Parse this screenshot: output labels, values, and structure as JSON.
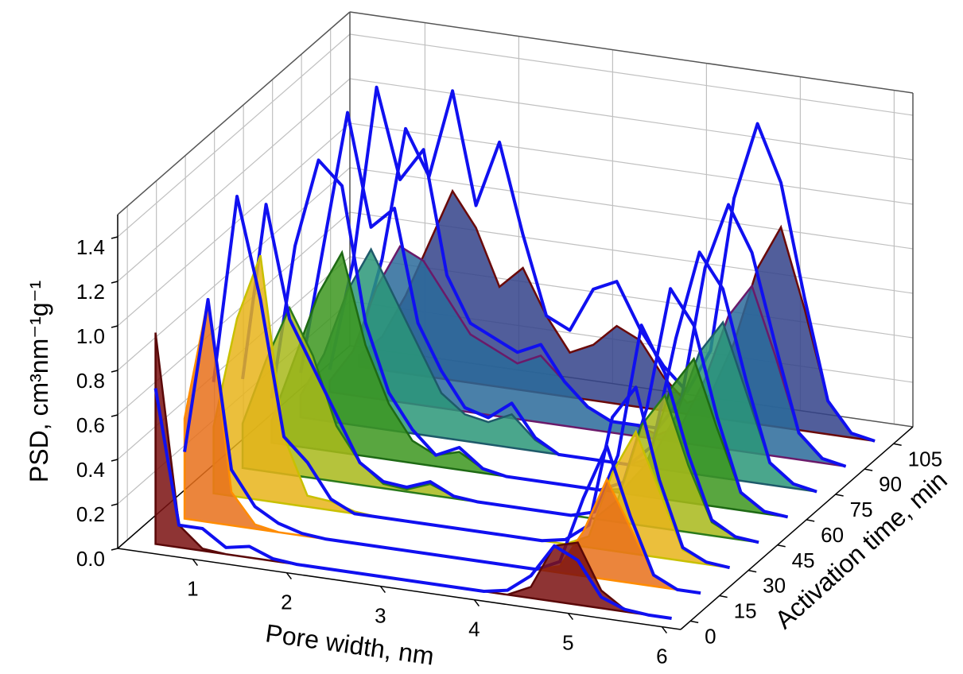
{
  "chart_data": {
    "type": "waterfall3d",
    "x_label": "Pore width, nm",
    "y_label": "PSD, cm³nm⁻¹g⁻¹",
    "z_label": "Activation time, min",
    "xlim": [
      0.2,
      6.2
    ],
    "xticks": [
      1,
      2,
      3,
      4,
      5,
      6
    ],
    "ylim": [
      0,
      1.5
    ],
    "yticks": [
      {
        "value": 0,
        "label": "0.0"
      },
      {
        "value": 0.2,
        "label": "0.2"
      },
      {
        "value": 0.4,
        "label": "0.4"
      },
      {
        "value": 0.6,
        "label": "0.6"
      },
      {
        "value": 0.8,
        "label": "0.8"
      },
      {
        "value": 1.0,
        "label": "1.0"
      },
      {
        "value": 1.2,
        "label": "1.2"
      },
      {
        "value": 1.4,
        "label": "1.4"
      }
    ],
    "zlim": [
      -5,
      115
    ],
    "zticks": [
      0,
      15,
      30,
      45,
      60,
      75,
      90,
      105
    ],
    "grid": true,
    "line_color": "#1010f0",
    "x": [
      0.5,
      0.75,
      1.0,
      1.25,
      1.5,
      1.75,
      2.0,
      2.25,
      2.5,
      2.75,
      3.0,
      3.25,
      3.5,
      3.75,
      4.0,
      4.25,
      4.5,
      4.75,
      5.0,
      5.25,
      5.5,
      5.75,
      6.0
    ],
    "series": [
      {
        "z": 0,
        "color": "#7a1010",
        "edge": "#5a0808",
        "values": [
          0.95,
          0.1,
          0.01,
          0,
          0,
          0,
          0,
          0,
          0,
          0,
          0,
          0,
          0,
          0,
          0,
          0,
          0.05,
          0.25,
          0.28,
          0.08,
          0.01,
          0,
          0
        ],
        "line_values": [
          0.7,
          0.1,
          0.1,
          0.03,
          0.05,
          0.01,
          0,
          0,
          0,
          0,
          0,
          0,
          0,
          0,
          0,
          0.02,
          0.1,
          0.25,
          0.2,
          0.05,
          0.01,
          0,
          0
        ]
      },
      {
        "z": 15,
        "color": "#e8701a",
        "edge": "#ff8c00",
        "values": [
          0.45,
          1.0,
          0.15,
          0.02,
          0,
          0,
          0,
          0,
          0,
          0,
          0,
          0,
          0,
          0,
          0,
          0,
          0.03,
          0.2,
          0.45,
          0.25,
          0.05,
          0,
          0
        ],
        "line_values": [
          0.3,
          1.0,
          0.25,
          0.1,
          0.04,
          0.01,
          0,
          0,
          0,
          0,
          0,
          0,
          0,
          0,
          0,
          0,
          0.05,
          0.35,
          0.6,
          0.3,
          0.05,
          0,
          0
        ]
      },
      {
        "z": 30,
        "color": "#e8b41a",
        "edge": "#c8c000",
        "values": [
          0.3,
          0.8,
          1.1,
          0.3,
          0.05,
          0.04,
          0.01,
          0,
          0,
          0,
          0,
          0,
          0,
          0,
          0,
          0,
          0.05,
          0.35,
          0.55,
          0.3,
          0.05,
          0.01,
          0
        ],
        "line_values": [
          0.5,
          1.35,
          0.9,
          0.3,
          0.2,
          0.05,
          0,
          0,
          0,
          0,
          0,
          0,
          0,
          0,
          0,
          0.02,
          0.1,
          0.6,
          0.75,
          0.35,
          0.06,
          0.01,
          0
        ]
      },
      {
        "z": 45,
        "color": "#a8b81a",
        "edge": "#2a7a1a",
        "values": [
          0.2,
          0.5,
          0.75,
          0.55,
          0.25,
          0.1,
          0.02,
          0.01,
          0.05,
          0.01,
          0,
          0,
          0,
          0,
          0,
          0,
          0.1,
          0.45,
          0.6,
          0.3,
          0.06,
          0.01,
          0
        ],
        "line_values": [
          0.4,
          1.2,
          0.7,
          0.5,
          0.3,
          0.1,
          0.03,
          0.02,
          0.06,
          0.01,
          0,
          0,
          0,
          0,
          0,
          0.03,
          0.3,
          0.9,
          0.7,
          0.35,
          0.07,
          0.01,
          0
        ]
      },
      {
        "z": 60,
        "color": "#3c961e",
        "edge": "#1e6a14",
        "values": [
          0.1,
          0.4,
          0.7,
          0.9,
          0.5,
          0.25,
          0.1,
          0.05,
          0.08,
          0.02,
          0,
          0,
          0,
          0,
          0,
          0.02,
          0.15,
          0.5,
          0.65,
          0.35,
          0.08,
          0.01,
          0
        ],
        "line_values": [
          0.2,
          0.9,
          1.3,
          1.2,
          0.6,
          0.3,
          0.15,
          0.05,
          0.1,
          0.02,
          0,
          0,
          0,
          0,
          0,
          0.05,
          0.4,
          0.95,
          0.8,
          0.4,
          0.08,
          0.01,
          0
        ]
      },
      {
        "z": 75,
        "color": "#2a9678",
        "edge": "#1e5a6a",
        "values": [
          0.1,
          0.3,
          0.6,
          0.8,
          0.6,
          0.4,
          0.2,
          0.12,
          0.1,
          0.15,
          0.05,
          0,
          0,
          0,
          0,
          0.05,
          0.25,
          0.55,
          0.7,
          0.4,
          0.1,
          0.02,
          0
        ],
        "line_values": [
          0.2,
          0.8,
          1.4,
          0.9,
          1.0,
          0.5,
          0.3,
          0.15,
          0.12,
          0.2,
          0.06,
          0,
          0,
          0,
          0,
          0.1,
          0.6,
          1.0,
          0.85,
          0.45,
          0.1,
          0.02,
          0
        ]
      },
      {
        "z": 90,
        "color": "#2a6a9a",
        "edge": "#6a1a6a",
        "values": [
          0.05,
          0.2,
          0.5,
          0.7,
          0.65,
          0.5,
          0.35,
          0.3,
          0.25,
          0.3,
          0.2,
          0.1,
          0.05,
          0.05,
          0.02,
          0.08,
          0.3,
          0.6,
          0.75,
          0.45,
          0.12,
          0.02,
          0
        ],
        "line_values": [
          0.1,
          0.6,
          1.4,
          1.0,
          1.15,
          0.6,
          0.4,
          0.35,
          0.3,
          0.35,
          0.2,
          0.1,
          0.05,
          0.05,
          0.05,
          0.2,
          0.8,
          1.1,
          0.9,
          0.5,
          0.12,
          0.02,
          0
        ]
      },
      {
        "z": 105,
        "color": "#32428a",
        "edge": "#6a0a0a",
        "values": [
          0.05,
          0.15,
          0.35,
          0.6,
          0.85,
          0.7,
          0.45,
          0.55,
          0.35,
          0.2,
          0.25,
          0.35,
          0.3,
          0.15,
          0.05,
          0.1,
          0.35,
          0.7,
          0.9,
          0.55,
          0.15,
          0.02,
          0
        ],
        "line_values": [
          0.1,
          0.5,
          1.1,
          0.9,
          1.3,
          0.8,
          1.1,
          0.7,
          0.35,
          0.3,
          0.5,
          0.55,
          0.35,
          0.2,
          0.1,
          0.3,
          1.0,
          1.35,
          1.1,
          0.6,
          0.15,
          0.02,
          0
        ]
      }
    ]
  }
}
